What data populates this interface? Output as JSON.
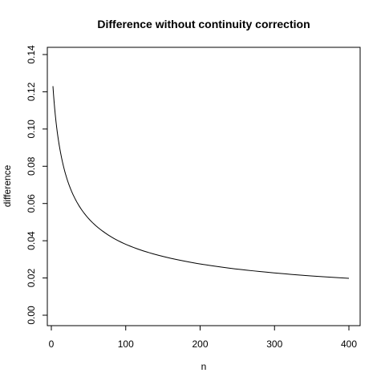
{
  "chart_data": {
    "type": "line",
    "title": "Difference without continuity correction",
    "xlabel": "n",
    "ylabel": "difference",
    "xlim": [
      10,
      400
    ],
    "ylim": [
      0,
      0.14
    ],
    "xticks": [
      0,
      100,
      200,
      300,
      400
    ],
    "xtick_labels": [
      "0",
      "100",
      "200",
      "300",
      "400"
    ],
    "yticks": [
      0,
      0.02,
      0.04,
      0.06,
      0.08,
      0.1,
      0.12,
      0.14
    ],
    "ytick_labels": [
      "0.00",
      "0.02",
      "0.04",
      "0.06",
      "0.08",
      "0.10",
      "0.12",
      "0.14"
    ],
    "grid": false,
    "legend": "none",
    "line_color": "#000000",
    "x": [
      10,
      15,
      20,
      25,
      30,
      40,
      50,
      60,
      75,
      100,
      125,
      150,
      200,
      250,
      300,
      350,
      400
    ],
    "y": [
      0.123,
      0.1006,
      0.0874,
      0.0782,
      0.0714,
      0.0619,
      0.0554,
      0.0506,
      0.0453,
      0.0392,
      0.0351,
      0.0321,
      0.0278,
      0.0249,
      0.0228,
      0.0211,
      0.0198
    ]
  }
}
